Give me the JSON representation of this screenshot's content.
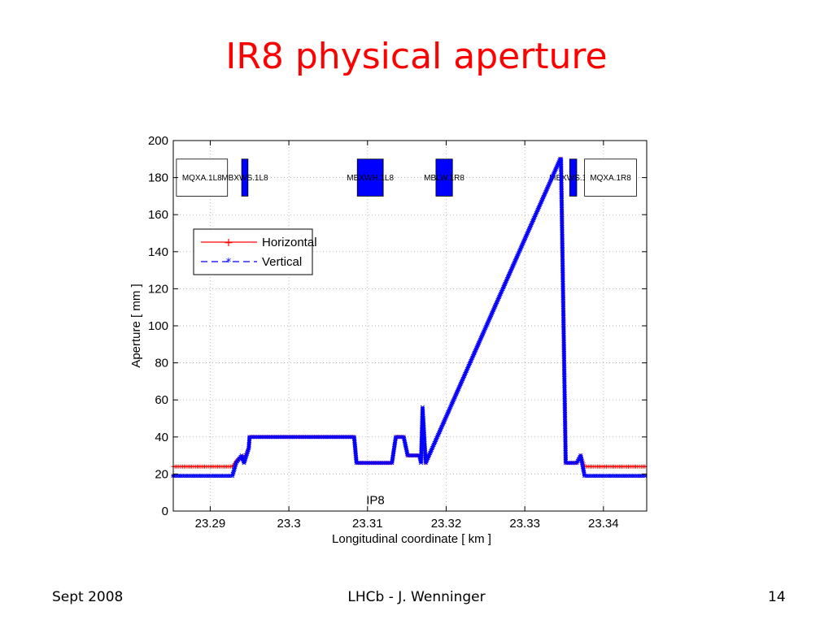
{
  "slide": {
    "title": "IR8 physical aperture",
    "footer_left": "Sept 2008",
    "footer_center": "LHCb - J. Wenninger",
    "footer_right": "14"
  },
  "chart_data": {
    "type": "line",
    "xlabel": "Longitudinal coordinate [ km ]",
    "ylabel": "Aperture [ mm ]",
    "xlim": [
      23.2853,
      23.3455
    ],
    "ylim": [
      0,
      200
    ],
    "x_ticks": [
      23.29,
      23.3,
      23.31,
      23.32,
      23.33,
      23.34
    ],
    "x_tick_labels": [
      "23.29",
      "23.3",
      "23.31",
      "23.32",
      "23.33",
      "23.34"
    ],
    "y_ticks": [
      0,
      20,
      40,
      60,
      80,
      100,
      120,
      140,
      160,
      180,
      200
    ],
    "y_tick_labels": [
      "0",
      "20",
      "40",
      "60",
      "80",
      "100",
      "120",
      "140",
      "160",
      "180",
      "200"
    ],
    "grid": true,
    "legend_position": "upper-left",
    "annotations": [
      {
        "text": "IP8",
        "x": 23.311,
        "y": 6
      }
    ],
    "magnets": [
      {
        "name": "MQXA.1L8",
        "x_start": 23.2857,
        "x_end": 23.2922,
        "y_bottom": 170,
        "y_top": 190,
        "fill": "#ffffff"
      },
      {
        "name": "MBXWS.1L8",
        "x_start": 23.294,
        "x_end": 23.2948,
        "y_bottom": 170,
        "y_top": 190,
        "fill": "#0000ff"
      },
      {
        "name": "MBXWH.1L8",
        "x_start": 23.3087,
        "x_end": 23.312,
        "y_bottom": 170,
        "y_top": 190,
        "fill": "#0000ff"
      },
      {
        "name": "MBLW.1R8",
        "x_start": 23.3187,
        "x_end": 23.3208,
        "y_bottom": 170,
        "y_top": 190,
        "fill": "#0000ff"
      },
      {
        "name": "MBXWS.1R8",
        "x_start": 23.3357,
        "x_end": 23.3366,
        "y_bottom": 170,
        "y_top": 190,
        "fill": "#0000ff"
      },
      {
        "name": "MQXA.1R8",
        "x_start": 23.3376,
        "x_end": 23.3442,
        "y_bottom": 170,
        "y_top": 190,
        "fill": "#ffffff"
      }
    ],
    "series": [
      {
        "name": "Horizontal",
        "color": "#ff0000",
        "marker": "+",
        "line_style": "solid",
        "x": [
          23.2853,
          23.2928,
          23.2935,
          23.2942,
          23.2949,
          23.295,
          23.3083,
          23.3086,
          23.3131,
          23.3136,
          23.3146,
          23.3151,
          23.3166,
          23.3168,
          23.317,
          23.3174,
          23.3345,
          23.3346,
          23.3352,
          23.3366,
          23.3371,
          23.3376,
          23.3455
        ],
        "y": [
          24,
          24,
          28,
          28,
          34,
          40,
          40,
          26,
          26,
          40,
          40,
          30,
          30,
          27,
          45,
          26,
          190,
          190,
          26,
          26,
          30,
          24,
          24
        ]
      },
      {
        "name": "Vertical",
        "color": "#0000ff",
        "marker": "*",
        "line_style": "dashed",
        "x": [
          23.2853,
          23.2928,
          23.2933,
          23.294,
          23.2943,
          23.2949,
          23.295,
          23.3083,
          23.3086,
          23.3131,
          23.3136,
          23.3146,
          23.3151,
          23.3166,
          23.3168,
          23.317,
          23.3174,
          23.3345,
          23.3346,
          23.3352,
          23.3366,
          23.3371,
          23.3376,
          23.3455
        ],
        "y": [
          19,
          19,
          26,
          30,
          26,
          34,
          40,
          40,
          26,
          26,
          40,
          40,
          30,
          30,
          26,
          56,
          26,
          190,
          190,
          26,
          26,
          30,
          19,
          19
        ]
      }
    ]
  }
}
